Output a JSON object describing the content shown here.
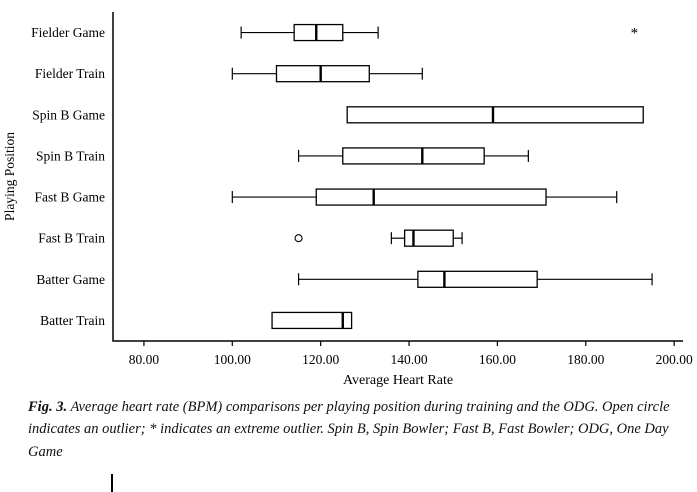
{
  "figure": {
    "caption_prefix": "Fig. 3.",
    "caption_body": " Average heart rate (BPM) comparisons per playing position during training and the ODG. Open circle indicates an outlier; * indicates an extreme outlier. Spin B, Spin Bowler; Fast B, Fast Bowler; ODG, One Day Game"
  },
  "chart_data": {
    "type": "boxplot-horizontal",
    "title": "",
    "xlabel": "Average Heart Rate",
    "ylabel": "Playing Position",
    "xlim": [
      73,
      202
    ],
    "xticks": [
      80,
      100,
      120,
      140,
      160,
      180,
      200
    ],
    "xtick_labels": [
      "80.00",
      "100.00",
      "120.00",
      "140.00",
      "160.00",
      "180.00",
      "200.00"
    ],
    "grid": false,
    "legend": "none",
    "categories": [
      "Fielder Game",
      "Fielder Train",
      "Spin B Game",
      "Spin B Train",
      "Fast B Game",
      "Fast B Train",
      "Batter Game",
      "Batter Train"
    ],
    "boxes": [
      {
        "low": 102,
        "q1": 114,
        "median": 119,
        "q3": 125,
        "high": 133,
        "outliers": [],
        "extremes": [
          191
        ]
      },
      {
        "low": 100,
        "q1": 110,
        "median": 120,
        "q3": 131,
        "high": 143,
        "outliers": [],
        "extremes": []
      },
      {
        "low": 126,
        "q1": 126,
        "median": 159,
        "q3": 193,
        "high": 193,
        "outliers": [],
        "extremes": []
      },
      {
        "low": 115,
        "q1": 125,
        "median": 143,
        "q3": 157,
        "high": 167,
        "outliers": [],
        "extremes": []
      },
      {
        "low": 100,
        "q1": 119,
        "median": 132,
        "q3": 171,
        "high": 187,
        "outliers": [],
        "extremes": []
      },
      {
        "low": 136,
        "q1": 139,
        "median": 141,
        "q3": 150,
        "high": 152,
        "outliers": [
          115
        ],
        "extremes": []
      },
      {
        "low": 115,
        "q1": 142,
        "median": 148,
        "q3": 169,
        "high": 195,
        "outliers": [],
        "extremes": []
      },
      {
        "low": 109,
        "q1": 109,
        "median": 125,
        "q3": 127,
        "high": 127,
        "outliers": [],
        "extremes": []
      }
    ]
  }
}
